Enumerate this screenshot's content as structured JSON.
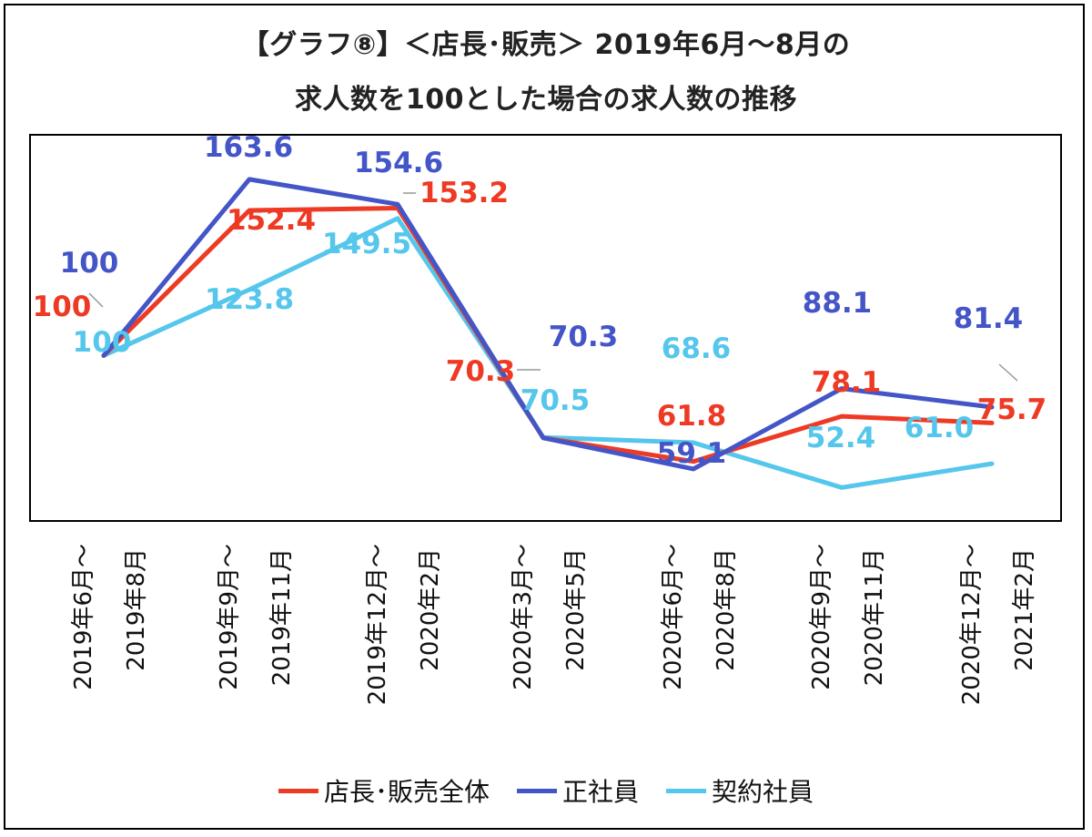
{
  "colors": {
    "manager": "#ee3a24",
    "regular": "#4455c7",
    "contract": "#55c6ec"
  },
  "chart_data": {
    "type": "line",
    "title": "【グラフ⑧】＜店長･販売＞ 2019年6月～8月の",
    "subtitle": "求人数を100とした場合の求人数の推移",
    "categories": [
      [
        "2019年6月～",
        "2019年8月"
      ],
      [
        "2019年9月～",
        "2019年11月"
      ],
      [
        "2019年12月～",
        "2020年2月"
      ],
      [
        "2020年3月～",
        "2020年5月"
      ],
      [
        "2020年6月～",
        "2020年8月"
      ],
      [
        "2020年9月～",
        "2020年11月"
      ],
      [
        "2020年12月～",
        "2021年2月"
      ]
    ],
    "ylim": [
      40,
      180
    ],
    "grid": false,
    "legend_position": "bottom",
    "series": [
      {
        "name": "店長･販売全体",
        "color_key": "manager",
        "values": [
          100,
          152.4,
          153.2,
          70.3,
          61.8,
          78.1,
          75.7
        ],
        "labels": [
          "100",
          "152.4",
          "153.2",
          "70.3",
          "61.8",
          "78.1",
          "75.7"
        ]
      },
      {
        "name": "正社員",
        "color_key": "regular",
        "values": [
          100,
          163.6,
          154.6,
          70.3,
          59.1,
          88.1,
          81.4
        ],
        "labels": [
          "100",
          "163.6",
          "154.6",
          "70.3",
          "59.1",
          "88.1",
          "81.4"
        ]
      },
      {
        "name": "契約社員",
        "color_key": "contract",
        "values": [
          100,
          123.8,
          149.5,
          70.5,
          68.6,
          52.4,
          61.0
        ],
        "labels": [
          "100",
          "123.8",
          "149.5",
          "70.5",
          "68.6",
          "52.4",
          "61.0"
        ]
      }
    ]
  }
}
